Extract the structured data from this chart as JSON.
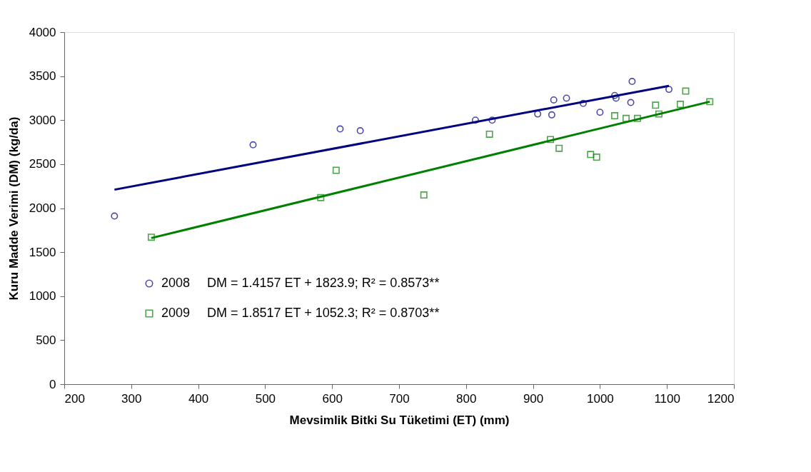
{
  "chart_data": {
    "type": "scatter",
    "xlabel": "Mevsimlik Bitki Su Tüketimi (ET) (mm)",
    "ylabel": "Kuru Madde Verimi (DM) (kg/da)",
    "xlim": [
      200,
      1200
    ],
    "xticks": [
      200,
      300,
      400,
      500,
      600,
      700,
      800,
      900,
      1000,
      1100,
      1200
    ],
    "ylim": [
      0,
      4000
    ],
    "yticks": [
      0,
      500,
      1000,
      1500,
      2000,
      2500,
      3000,
      3500,
      4000
    ],
    "grid": false,
    "legend": "bottom left",
    "annotations": [
      "DM = 1.4157 ET + 1823.9;  R² = 0.8573**",
      "DM = 1.8517 ET + 1052.3;  R² = 0.8703**"
    ],
    "series": [
      {
        "name": "2008",
        "marker": "circle",
        "color": "#000080",
        "x": [
          275,
          482,
          612,
          642,
          814,
          839,
          907,
          928,
          931,
          950,
          975,
          1000,
          1022,
          1024,
          1046,
          1048,
          1103
        ],
        "values": [
          1910,
          2720,
          2900,
          2880,
          3000,
          3000,
          3070,
          3060,
          3230,
          3250,
          3190,
          3090,
          3280,
          3250,
          3200,
          3440,
          3350
        ]
      },
      {
        "name": "2009",
        "marker": "square",
        "color": "#008000",
        "x": [
          330,
          583,
          606,
          737,
          835,
          926,
          939,
          986,
          995,
          1022,
          1039,
          1056,
          1083,
          1088,
          1120,
          1128,
          1164
        ],
        "values": [
          1670,
          2120,
          2430,
          2150,
          2840,
          2780,
          2680,
          2610,
          2580,
          3050,
          3020,
          3020,
          3170,
          3070,
          3180,
          3330,
          3210
        ]
      },
      {
        "type": "line",
        "line_style": "solid",
        "color": "#000080",
        "x": [
          275,
          1103
        ],
        "values": [
          2210,
          3390
        ]
      },
      {
        "type": "line",
        "line_style": "solid",
        "color": "#008000",
        "x": [
          330,
          1164
        ],
        "values": [
          1660,
          3210
        ]
      }
    ]
  }
}
